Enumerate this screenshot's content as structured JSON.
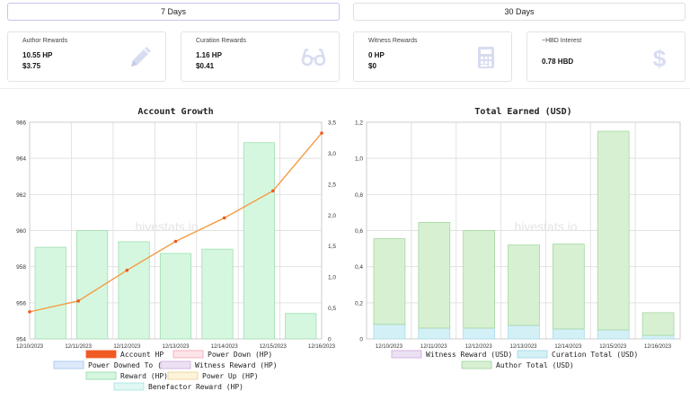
{
  "tabs": [
    {
      "label": "7 Days",
      "active": true
    },
    {
      "label": "30 Days",
      "active": false
    }
  ],
  "cards": [
    {
      "title": "Author Rewards",
      "line1": "10.55 HP",
      "line2": "$3.75",
      "icon": "pencil-icon"
    },
    {
      "title": "Curation Rewards",
      "line1": "1.16 HP",
      "line2": "$0.41",
      "icon": "glasses-icon"
    },
    {
      "title": "Witness Rewards",
      "line1": "0 HP",
      "line2": "$0",
      "icon": "calculator-icon"
    },
    {
      "title": "~HBD Interest",
      "line1": "0.78 HBD",
      "line2": "",
      "icon": "dollar-icon"
    }
  ],
  "colors": {
    "accent": "#c3c6ee",
    "account_hp": "#f05a24",
    "line": "#f49b43",
    "reward_fill": "#d5f7df",
    "reward_stroke": "#9fdeb0",
    "author_fill": "#d7f0d2",
    "curation_fill": "#d3f0f7",
    "icon": "#d8dcf1"
  },
  "watermark": "hivestats.io",
  "chart_data": [
    {
      "type": "bar+line",
      "title": "Account Growth",
      "categories": [
        "12/10/2023",
        "12/11/2023",
        "12/12/2023",
        "12/13/2023",
        "12/14/2023",
        "12/15/2023",
        "12/16/2023"
      ],
      "y_left": {
        "min": 954,
        "max": 966,
        "ticks": [
          "954",
          "956",
          "958",
          "960",
          "962",
          "964",
          "966"
        ]
      },
      "y_right": {
        "min": 0,
        "max": 3.5,
        "ticks": [
          "0",
          "0,5",
          "1,0",
          "1,5",
          "2,0",
          "2,5",
          "3,0",
          "3,5"
        ]
      },
      "series": [
        {
          "name": "Account HP",
          "axis": "left",
          "kind": "line",
          "values": [
            955.5,
            956.1,
            957.8,
            959.4,
            960.7,
            962.2,
            965.4
          ]
        },
        {
          "name": "Reward (HP)",
          "axis": "right",
          "kind": "bar",
          "values": [
            1.48,
            1.75,
            1.57,
            1.38,
            1.45,
            3.17,
            0.41
          ]
        }
      ],
      "legend": [
        {
          "label": "Account HP",
          "fill": "#f05a24",
          "stroke": "#f05a24"
        },
        {
          "label": "Power Down (HP)",
          "fill": "#fde4e8",
          "stroke": "#f3a6b5"
        },
        {
          "label": "Power Downed To (HP)",
          "fill": "#deeafc",
          "stroke": "#9fc1ee"
        },
        {
          "label": "Witness Reward (HP)",
          "fill": "#ece1f2",
          "stroke": "#c9a8dc"
        },
        {
          "label": "Reward (HP)",
          "fill": "#d5f7df",
          "stroke": "#8ed8a3"
        },
        {
          "label": "Power Up (HP)",
          "fill": "#fdf4dc",
          "stroke": "#ecd08f"
        },
        {
          "label": "Benefactor Reward (HP)",
          "fill": "#e0f7f4",
          "stroke": "#a6e3da"
        }
      ],
      "legend_position": "bottom",
      "grid": true
    },
    {
      "type": "stacked-bar",
      "title": "Total Earned (USD)",
      "categories": [
        "12/10/2023",
        "12/11/2023",
        "12/12/2023",
        "12/13/2023",
        "12/14/2023",
        "12/15/2023",
        "12/16/2023"
      ],
      "y": {
        "min": 0,
        "max": 1.2,
        "ticks": [
          "0",
          "0,2",
          "0,4",
          "0,6",
          "0,8",
          "1,0",
          "1,2"
        ]
      },
      "series": [
        {
          "name": "Witness Reward (USD)",
          "values": [
            0,
            0,
            0,
            0,
            0,
            0,
            0
          ]
        },
        {
          "name": "Curation Total (USD)",
          "values": [
            0.08,
            0.06,
            0.06,
            0.075,
            0.055,
            0.05,
            0.02
          ]
        },
        {
          "name": "Author Total (USD)",
          "values": [
            0.475,
            0.585,
            0.54,
            0.445,
            0.47,
            1.1,
            0.125
          ]
        }
      ],
      "legend": [
        {
          "label": "Witness Reward (USD)",
          "fill": "#ece1f2",
          "stroke": "#c9a8dc"
        },
        {
          "label": "Curation Total (USD)",
          "fill": "#d3f0f7",
          "stroke": "#9fd6e6"
        },
        {
          "label": "Author Total (USD)",
          "fill": "#d7f0d2",
          "stroke": "#9fd49a"
        }
      ],
      "legend_position": "bottom",
      "grid": true
    }
  ]
}
